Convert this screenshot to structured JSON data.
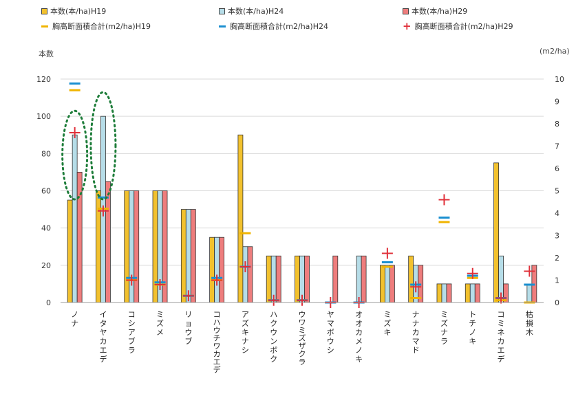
{
  "chart_data": {
    "type": "bar",
    "categories": [
      "ノナ",
      "イタヤカエデ",
      "コシアブラ",
      "ミズメ",
      "リョウブ",
      "コハウチワカエデ",
      "アズキナシ",
      "ハクウンボク",
      "ウワミズザクラ",
      "ヤマボウシ",
      "オオカメノキ",
      "ミズキ",
      "ナナカマド",
      "ミズナラ",
      "トチノキ",
      "コミネカエデ",
      "枯損木"
    ],
    "series": [
      {
        "name": "本数(本/ha)H19",
        "axis": "left",
        "kind": "bar",
        "color": "#f2c12e",
        "values": [
          55,
          60,
          60,
          60,
          50,
          35,
          90,
          25,
          25,
          0,
          0,
          20,
          25,
          10,
          10,
          75,
          0
        ]
      },
      {
        "name": "本数(本/ha)H24",
        "axis": "left",
        "kind": "bar",
        "color": "#b6dde8",
        "values": [
          90,
          100,
          60,
          60,
          50,
          35,
          30,
          25,
          25,
          0,
          25,
          20,
          20,
          10,
          10,
          25,
          10
        ]
      },
      {
        "name": "本数(本/ha)H29",
        "axis": "left",
        "kind": "bar",
        "color": "#ee7d7d",
        "values": [
          70,
          65,
          60,
          60,
          50,
          35,
          30,
          25,
          25,
          25,
          25,
          20,
          20,
          10,
          10,
          10,
          20
        ]
      },
      {
        "name": "胸高断面積合計(m2/ha)H19",
        "axis": "right",
        "kind": "dash",
        "color": "#f0b400",
        "values": [
          9.5,
          4.2,
          1.0,
          0.8,
          0.3,
          1.0,
          3.1,
          0.1,
          0.1,
          0.0,
          0.0,
          1.6,
          0.2,
          3.6,
          1.1,
          0.1,
          0.0
        ]
      },
      {
        "name": "胸高断面積合計(m2/ha)H24",
        "axis": "right",
        "kind": "dash",
        "color": "#1a8fd0",
        "values": [
          9.8,
          4.7,
          1.1,
          0.9,
          0.3,
          1.1,
          1.6,
          0.1,
          0.1,
          0.0,
          0.0,
          1.8,
          0.8,
          3.8,
          1.2,
          0.2,
          0.8
        ]
      },
      {
        "name": "胸高断面積合計(m2/ha)H29",
        "axis": "right",
        "kind": "plus",
        "color": "#e0303a",
        "values": [
          7.6,
          4.1,
          1.0,
          0.8,
          0.3,
          1.0,
          1.6,
          0.1,
          0.1,
          0.0,
          0.0,
          2.2,
          0.7,
          4.6,
          1.3,
          0.2,
          1.4
        ]
      }
    ],
    "ylabel_left": "本数",
    "ylabel_right": "(m2/ha)",
    "ylim_left": [
      0,
      120
    ],
    "ylim_right": [
      0,
      10
    ],
    "yticks_left": [
      "0",
      "20",
      "40",
      "60",
      "80",
      "100",
      "120"
    ],
    "yticks_right": [
      "0",
      "1",
      "2",
      "3",
      "4",
      "5",
      "6",
      "7",
      "8",
      "9",
      "10"
    ],
    "grid": true,
    "legend_position": "top",
    "highlight": {
      "style": "dotted green ellipse",
      "categories": [
        "ノナ",
        "イタヤカエデ"
      ],
      "series": "本数(本/ha)H24"
    }
  },
  "legend": {
    "bar_h19": "本数(本/ha)H19",
    "bar_h24": "本数(本/ha)H24",
    "bar_h29": "本数(本/ha)H29",
    "mark_h19": "胸高断面積合計(m2/ha)H19",
    "mark_h24": "胸高断面積合計(m2/ha)H24",
    "mark_h29": "胸高断面積合計(m2/ha)H29"
  }
}
